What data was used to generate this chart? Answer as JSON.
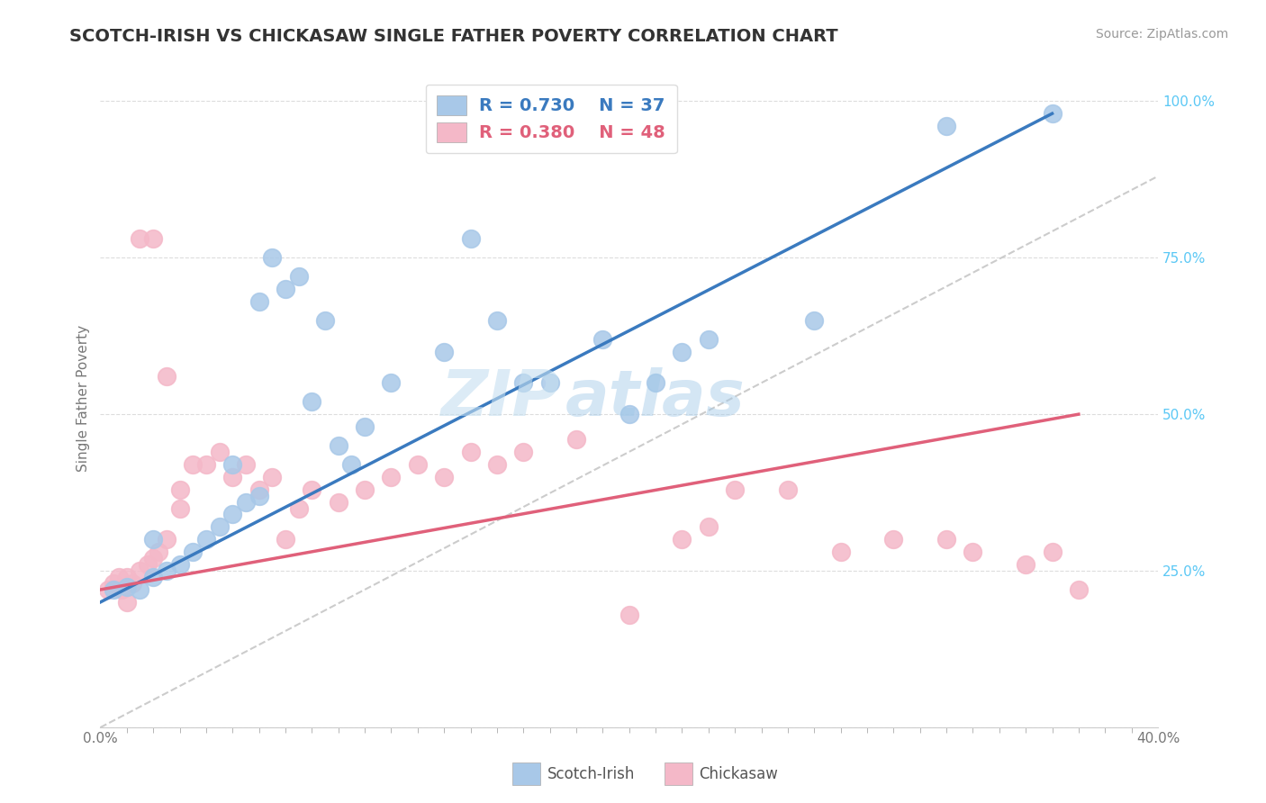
{
  "title": "SCOTCH-IRISH VS CHICKASAW SINGLE FATHER POVERTY CORRELATION CHART",
  "source": "Source: ZipAtlas.com",
  "ylabel": "Single Father Poverty",
  "legend_blue_label": "Scotch-Irish",
  "legend_pink_label": "Chickasaw",
  "watermark_zip": "ZIP",
  "watermark_atlas": "atlas",
  "blue_dot_color": "#a8c8e8",
  "pink_dot_color": "#f4b8c8",
  "blue_line_color": "#3a7abf",
  "pink_line_color": "#e0607a",
  "gray_line_color": "#cccccc",
  "ytick_color": "#5bc8f5",
  "title_color": "#333333",
  "source_color": "#999999",
  "ylabel_color": "#777777",
  "xtick_color": "#777777",
  "legend_border_color": "#dddddd",
  "scotch_irish_x": [
    0.5,
    1.0,
    1.5,
    2.0,
    2.0,
    2.5,
    3.0,
    3.5,
    4.0,
    4.5,
    5.0,
    5.5,
    6.0,
    6.0,
    7.0,
    7.5,
    8.0,
    9.0,
    10.0,
    11.0,
    13.0,
    15.0,
    17.0,
    19.0,
    20.0,
    21.0,
    22.0,
    23.0,
    27.0,
    32.0,
    36.0,
    5.0,
    6.5,
    8.5,
    9.5,
    14.0,
    16.0
  ],
  "scotch_irish_y": [
    22.0,
    22.5,
    22.0,
    24.0,
    30.0,
    25.0,
    26.0,
    28.0,
    30.0,
    32.0,
    34.0,
    36.0,
    37.0,
    68.0,
    70.0,
    72.0,
    52.0,
    45.0,
    48.0,
    55.0,
    60.0,
    65.0,
    55.0,
    62.0,
    50.0,
    55.0,
    60.0,
    62.0,
    65.0,
    96.0,
    98.0,
    42.0,
    75.0,
    65.0,
    42.0,
    78.0,
    55.0
  ],
  "chickasaw_x": [
    0.3,
    0.5,
    0.7,
    0.8,
    1.0,
    1.0,
    1.2,
    1.5,
    1.5,
    1.8,
    2.0,
    2.0,
    2.2,
    2.5,
    2.5,
    3.0,
    3.0,
    3.5,
    4.0,
    4.5,
    5.0,
    5.5,
    6.0,
    6.5,
    7.0,
    7.5,
    8.0,
    9.0,
    10.0,
    11.0,
    12.0,
    13.0,
    14.0,
    15.0,
    16.0,
    18.0,
    20.0,
    22.0,
    23.0,
    24.0,
    26.0,
    28.0,
    30.0,
    32.0,
    33.0,
    35.0,
    36.0,
    37.0
  ],
  "chickasaw_y": [
    22.0,
    23.0,
    24.0,
    22.0,
    20.0,
    24.0,
    23.0,
    78.0,
    25.0,
    26.0,
    27.0,
    78.0,
    28.0,
    56.0,
    30.0,
    35.0,
    38.0,
    42.0,
    42.0,
    44.0,
    40.0,
    42.0,
    38.0,
    40.0,
    30.0,
    35.0,
    38.0,
    36.0,
    38.0,
    40.0,
    42.0,
    40.0,
    44.0,
    42.0,
    44.0,
    46.0,
    18.0,
    30.0,
    32.0,
    38.0,
    38.0,
    28.0,
    30.0,
    30.0,
    28.0,
    26.0,
    28.0,
    22.0
  ],
  "blue_line_x0": 0.0,
  "blue_line_y0": 20.0,
  "blue_line_x1": 36.0,
  "blue_line_y1": 98.0,
  "pink_line_x0": 0.0,
  "pink_line_y0": 22.0,
  "pink_line_x1": 37.0,
  "pink_line_y1": 50.0,
  "gray_line_x0": 0.0,
  "gray_line_y0": 0.0,
  "gray_line_x1": 40.0,
  "gray_line_y1": 88.0,
  "xmin": 0.0,
  "xmax": 40.0,
  "ymin": 0.0,
  "ymax": 105.0,
  "x_ticks_minor": [
    0,
    1,
    2,
    3,
    4,
    5,
    6,
    7,
    8,
    9,
    10,
    11,
    12,
    13,
    14,
    15,
    16,
    17,
    18,
    19,
    20,
    21,
    22,
    23,
    24,
    25,
    26,
    27,
    28,
    29,
    30,
    31,
    32,
    33,
    34,
    35,
    36,
    37,
    38,
    39,
    40
  ],
  "y_ticks": [
    0,
    25,
    50,
    75,
    100
  ]
}
